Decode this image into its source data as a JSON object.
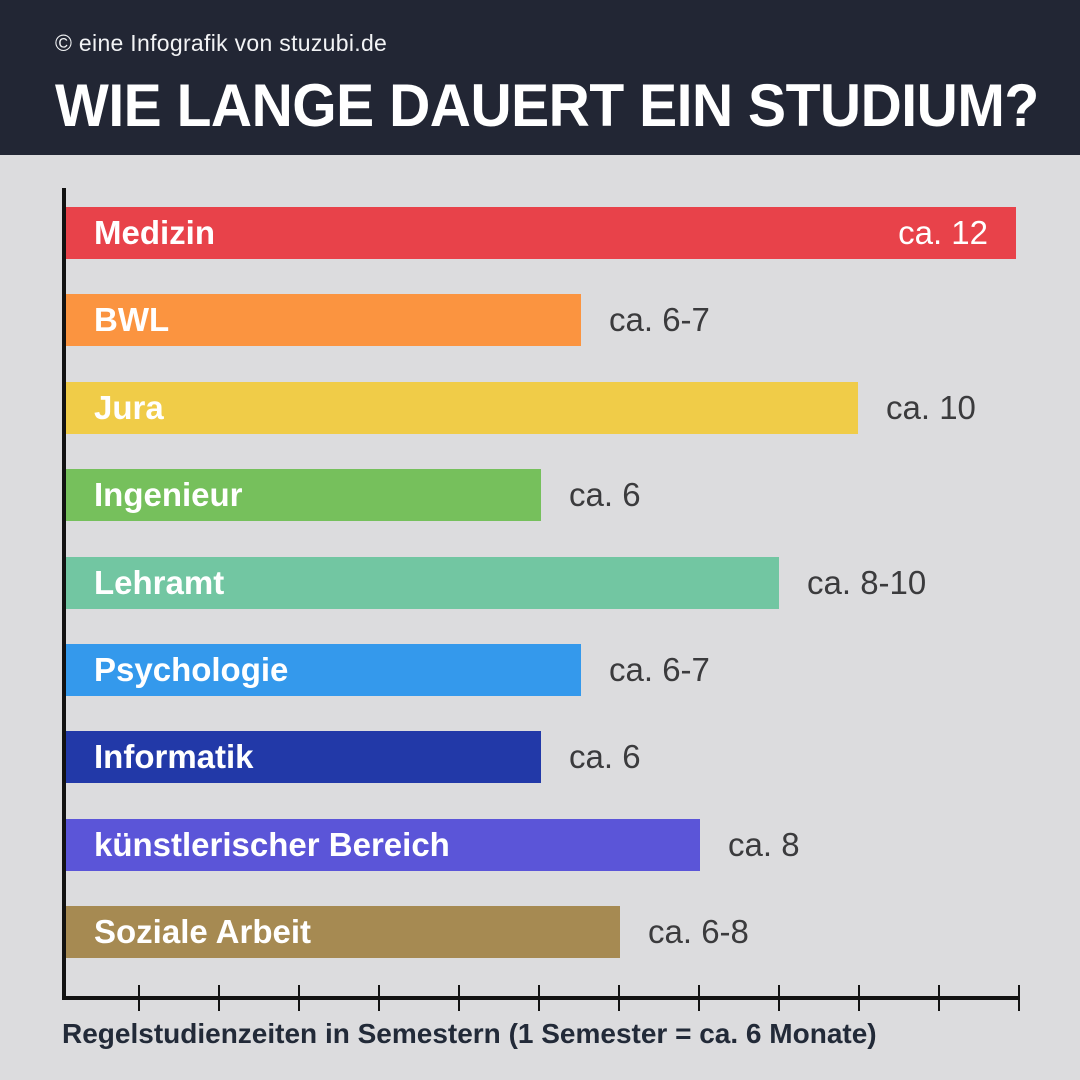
{
  "header": {
    "copyright": "© eine Infografik von stuzubi.de",
    "title": "WIE LANGE DAUERT EIN STUDIUM?",
    "bg_color": "#222634",
    "text_color": "#ffffff"
  },
  "chart_data": {
    "type": "bar",
    "orientation": "horizontal",
    "title": "WIE LANGE DAUERT EIN STUDIUM?",
    "xlabel": "Regelstudienzeiten in Semestern (1 Semester = ca. 6 Monate)",
    "xlim": [
      0,
      12
    ],
    "x_ticks": [
      1,
      2,
      3,
      4,
      5,
      6,
      7,
      8,
      9,
      10,
      11,
      12
    ],
    "grid": false,
    "legend": false,
    "categories": [
      "Medizin",
      "BWL",
      "Jura",
      "Ingenieur",
      "Lehramt",
      "Psychologie",
      "Informatik",
      "künstlerischer Bereich",
      "Soziale Arbeit"
    ],
    "bars": [
      {
        "label": "Medizin",
        "value_label": "ca. 12",
        "value": 12,
        "color": "#e8424a",
        "value_inside": true
      },
      {
        "label": "BWL",
        "value_label": "ca. 6-7",
        "value": 6.5,
        "color": "#fb9440",
        "value_inside": false
      },
      {
        "label": "Jura",
        "value_label": "ca. 10",
        "value": 10,
        "color": "#f0cc48",
        "value_inside": false
      },
      {
        "label": "Ingenieur",
        "value_label": "ca. 6",
        "value": 6,
        "color": "#76c05c",
        "value_inside": false
      },
      {
        "label": "Lehramt",
        "value_label": "ca. 8-10",
        "value": 9,
        "color": "#72c6a2",
        "value_inside": false
      },
      {
        "label": "Psychologie",
        "value_label": "ca. 6-7",
        "value": 6.5,
        "color": "#3499ec",
        "value_inside": false
      },
      {
        "label": "Informatik",
        "value_label": "ca. 6",
        "value": 6,
        "color": "#2239a8",
        "value_inside": false
      },
      {
        "label": "künstlerischer Bereich",
        "value_label": "ca. 8",
        "value": 8,
        "color": "#5b55d8",
        "value_inside": false
      },
      {
        "label": "Soziale Arbeit",
        "value_label": "ca. 6-8",
        "value": 7,
        "color": "#a68a52",
        "value_inside": false
      }
    ]
  },
  "colors": {
    "page_bg": "#dcdcde",
    "axis": "#121212",
    "value_text": "#3b3b3d",
    "axis_label_text": "#222a38"
  }
}
